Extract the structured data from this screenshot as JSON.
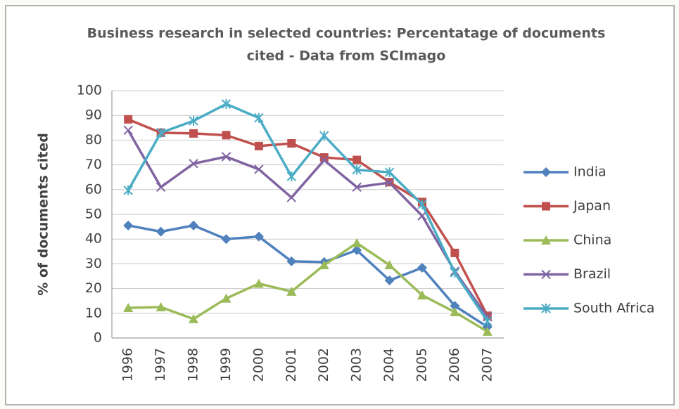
{
  "chart_data": {
    "type": "line",
    "title": "Business research in selected countries: Percentatage of documents cited - Data from SCImago",
    "title_lines": [
      "Business research in selected countries: Percentatage of documents",
      "cited - Data from SCImago"
    ],
    "y_label": "% of documents cited",
    "categories": [
      "1996",
      "1997",
      "1998",
      "1999",
      "2000",
      "2001",
      "2002",
      "2003",
      "2004",
      "2005",
      "2006",
      "2007"
    ],
    "series": [
      {
        "name": "India",
        "color": "#4f81bd",
        "marker": "diamond",
        "values": [
          45.5,
          43,
          45.5,
          40,
          41,
          31,
          30.7,
          35.5,
          23.3,
          28.4,
          13,
          4.5
        ]
      },
      {
        "name": "Japan",
        "color": "#c0504d",
        "marker": "square",
        "values": [
          88.4,
          83,
          82.7,
          82,
          77.6,
          78.7,
          73,
          72,
          63,
          55,
          34.4,
          9
        ]
      },
      {
        "name": "China",
        "color": "#9bbb59",
        "marker": "triangle",
        "values": [
          12.2,
          12.5,
          7.7,
          16,
          22,
          18.8,
          29.5,
          38.4,
          29.5,
          17.3,
          10.5,
          2.6
        ]
      },
      {
        "name": "Brazil",
        "color": "#8064a2",
        "marker": "x",
        "values": [
          84,
          61,
          70.5,
          73.3,
          68.2,
          56.8,
          71.9,
          61,
          62.8,
          49.4,
          27,
          8.5
        ]
      },
      {
        "name": "South Africa",
        "color": "#4bacc6",
        "marker": "star",
        "values": [
          59.7,
          83,
          87.8,
          94.6,
          89,
          65.3,
          81.8,
          68,
          67,
          54,
          26.4,
          6.8
        ]
      }
    ],
    "ylim": [
      0,
      100
    ],
    "yticks": [
      0,
      10,
      20,
      30,
      40,
      50,
      60,
      70,
      80,
      90,
      100
    ],
    "grid": true,
    "legend": "right"
  }
}
